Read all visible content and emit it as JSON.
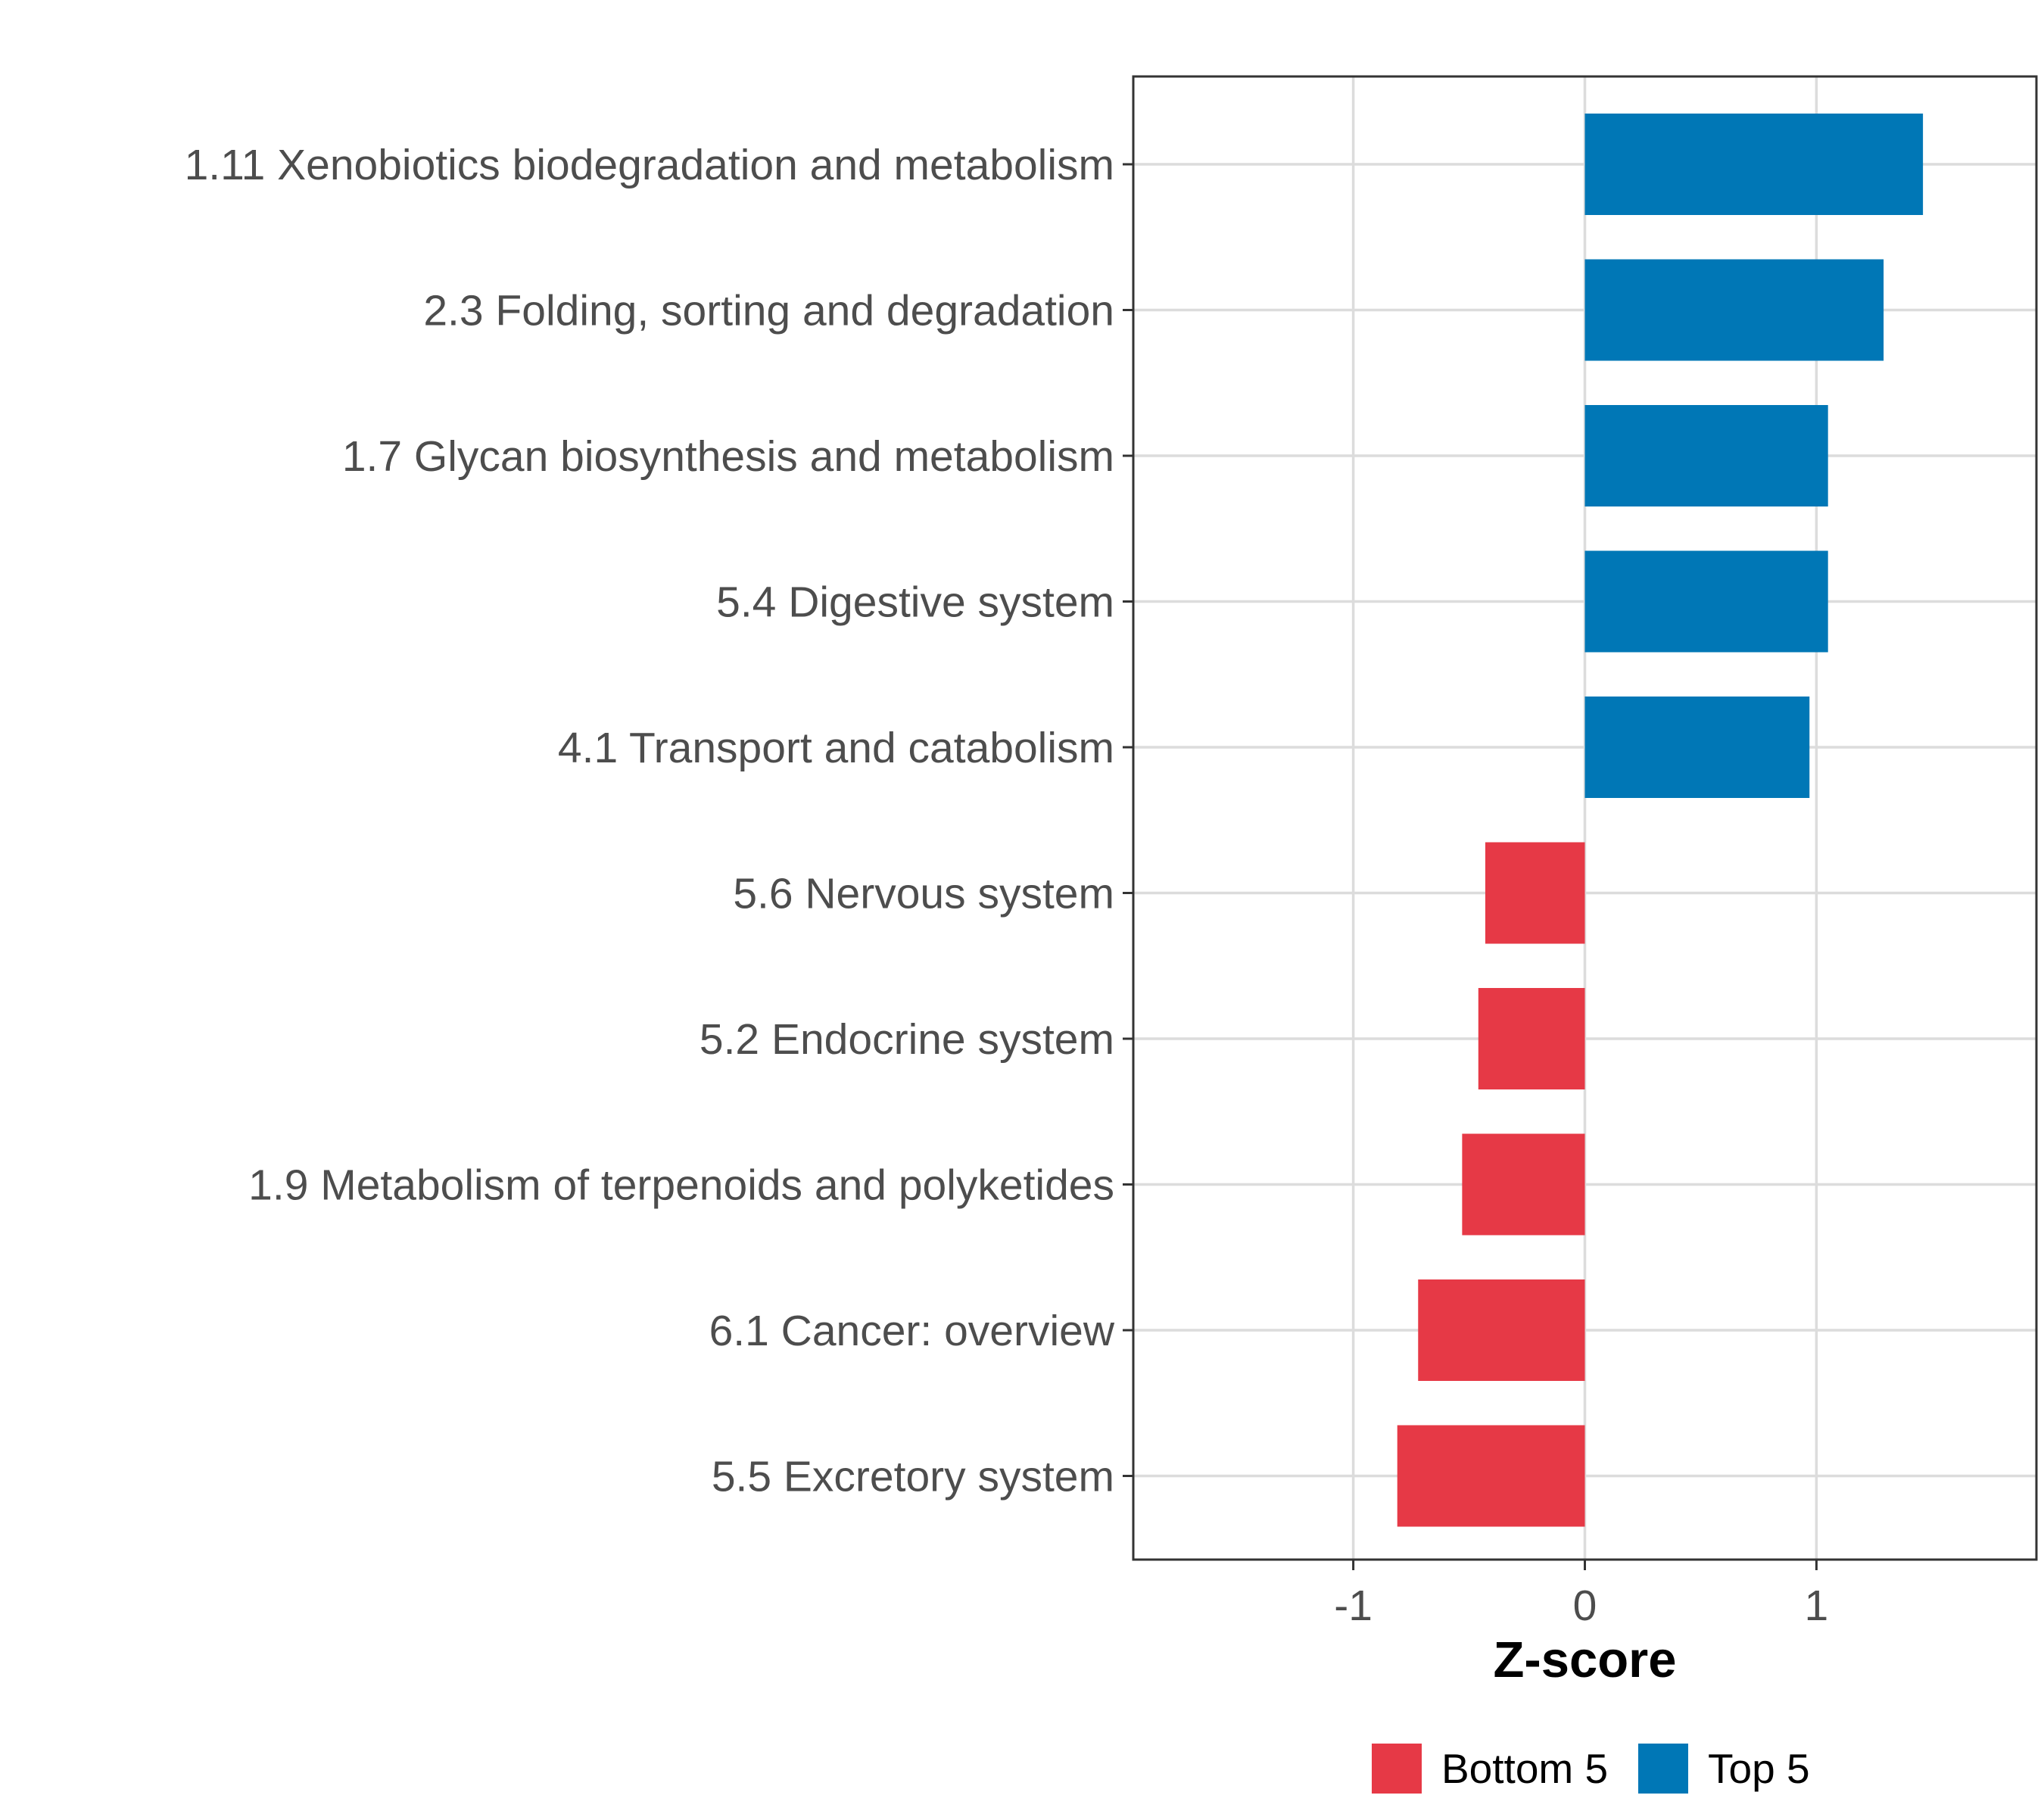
{
  "chart_data": {
    "type": "bar",
    "orientation": "horizontal",
    "categories": [
      "1.11 Xenobiotics biodegradation and metabolism",
      "2.3 Folding, sorting and degradation",
      "1.7 Glycan biosynthesis and metabolism",
      "5.4 Digestive system",
      "4.1 Transport and catabolism",
      "5.6 Nervous system",
      "5.2 Endocrine system",
      "1.9 Metabolism of terpenoids and polyketides",
      "6.1 Cancer: overview",
      "5.5 Excretory system"
    ],
    "values": [
      1.46,
      1.29,
      1.05,
      1.05,
      0.97,
      -0.43,
      -0.46,
      -0.53,
      -0.72,
      -0.81
    ],
    "groups": [
      "Top 5",
      "Top 5",
      "Top 5",
      "Top 5",
      "Top 5",
      "Bottom 5",
      "Bottom 5",
      "Bottom 5",
      "Bottom 5",
      "Bottom 5"
    ],
    "xlabel": "Z-score",
    "ylabel": "",
    "xlim": [
      -1.95,
      1.95
    ],
    "xticks": [
      -1,
      0,
      1
    ],
    "xtick_labels": [
      "-1",
      "0",
      "1"
    ],
    "grid": true,
    "legend": {
      "position": "bottom",
      "entries": [
        {
          "label": "Bottom 5",
          "color": "#e63946"
        },
        {
          "label": "Top 5",
          "color": "#0077b6"
        }
      ]
    }
  }
}
